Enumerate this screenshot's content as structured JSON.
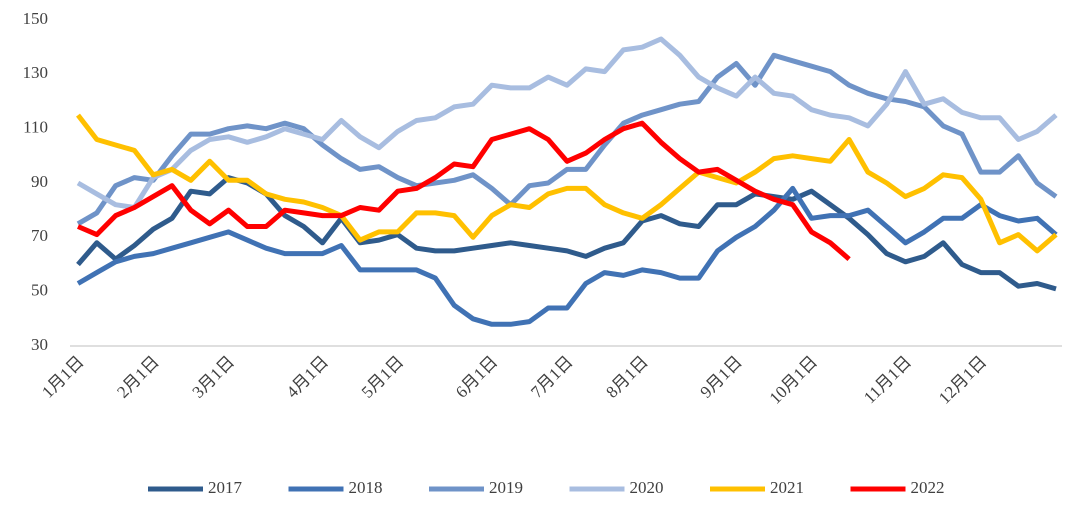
{
  "chart_data": {
    "type": "line",
    "categories": [
      "1月1日",
      null,
      null,
      null,
      "2月1日",
      null,
      null,
      null,
      "3月1日",
      null,
      null,
      null,
      null,
      "4月1日",
      null,
      null,
      null,
      "5月1日",
      null,
      null,
      null,
      null,
      "6月1日",
      null,
      null,
      null,
      "7月1日",
      null,
      null,
      null,
      "8月1日",
      null,
      null,
      null,
      null,
      "9月1日",
      null,
      null,
      null,
      "10月1日",
      null,
      null,
      null,
      null,
      "11月1日",
      null,
      null,
      null,
      "12月1日",
      null,
      null,
      null,
      null
    ],
    "ylim": [
      30,
      150
    ],
    "yticks": [
      30,
      50,
      70,
      90,
      110,
      130,
      150
    ],
    "grid": false,
    "legend": "bottom",
    "series": [
      {
        "name": "2017",
        "color": "#2f5b8c",
        "values": [
          60,
          68,
          62,
          67,
          73,
          77,
          87,
          86,
          92,
          90,
          86,
          78,
          74,
          68,
          77,
          68,
          69,
          71,
          66,
          65,
          65,
          66,
          67,
          68,
          67,
          66,
          65,
          63,
          66,
          68,
          76,
          78,
          75,
          74,
          82,
          82,
          86,
          85,
          84,
          87,
          82,
          77,
          71,
          64,
          61,
          63,
          68,
          60,
          57,
          57,
          52,
          53,
          51
        ]
      },
      {
        "name": "2018",
        "color": "#4072b4",
        "values": [
          53,
          57,
          61,
          63,
          64,
          66,
          68,
          70,
          72,
          69,
          66,
          64,
          64,
          64,
          67,
          58,
          58,
          58,
          58,
          55,
          45,
          40,
          38,
          38,
          39,
          44,
          44,
          53,
          57,
          56,
          58,
          57,
          55,
          55,
          65,
          70,
          74,
          80,
          88,
          77,
          78,
          78,
          80,
          74,
          68,
          72,
          77,
          77,
          82,
          78,
          76,
          77,
          71
        ]
      },
      {
        "name": "2019",
        "color": "#6f93c8",
        "values": [
          75,
          79,
          89,
          92,
          91,
          100,
          108,
          108,
          110,
          111,
          110,
          112,
          110,
          104,
          99,
          95,
          96,
          92,
          89,
          90,
          91,
          93,
          88,
          82,
          89,
          90,
          95,
          95,
          104,
          112,
          115,
          117,
          119,
          120,
          129,
          134,
          126,
          137,
          135,
          133,
          131,
          126,
          123,
          121,
          120,
          118,
          111,
          108,
          94,
          94,
          100,
          90,
          85
        ]
      },
      {
        "name": "2020",
        "color": "#a8bde0",
        "values": [
          90,
          86,
          82,
          81,
          92,
          95,
          102,
          106,
          107,
          105,
          107,
          110,
          108,
          106,
          113,
          107,
          103,
          109,
          113,
          114,
          118,
          119,
          126,
          125,
          125,
          129,
          126,
          132,
          131,
          139,
          140,
          143,
          137,
          129,
          125,
          122,
          129,
          123,
          122,
          117,
          115,
          114,
          111,
          119,
          131,
          119,
          121,
          116,
          114,
          114,
          106,
          109,
          115
        ]
      },
      {
        "name": "2021",
        "color": "#ffc000",
        "values": [
          115,
          106,
          104,
          102,
          93,
          95,
          91,
          98,
          91,
          91,
          86,
          84,
          83,
          81,
          78,
          69,
          72,
          72,
          79,
          79,
          78,
          70,
          78,
          82,
          81,
          86,
          88,
          88,
          82,
          79,
          77,
          82,
          88,
          94,
          92,
          90,
          94,
          99,
          100,
          99,
          98,
          106,
          94,
          90,
          85,
          88,
          93,
          92,
          84,
          68,
          71,
          65,
          71
        ]
      },
      {
        "name": "2022",
        "color": "#ff0000",
        "values": [
          74,
          71,
          78,
          81,
          85,
          89,
          80,
          75,
          80,
          74,
          74,
          80,
          79,
          78,
          78,
          81,
          80,
          87,
          88,
          92,
          97,
          96,
          106,
          108,
          110,
          106,
          98,
          101,
          106,
          110,
          112,
          105,
          99,
          94,
          95,
          91,
          87,
          84,
          82,
          72,
          68,
          62,
          null,
          null,
          null,
          null,
          null,
          null,
          null,
          null,
          null,
          null,
          null
        ]
      }
    ]
  }
}
